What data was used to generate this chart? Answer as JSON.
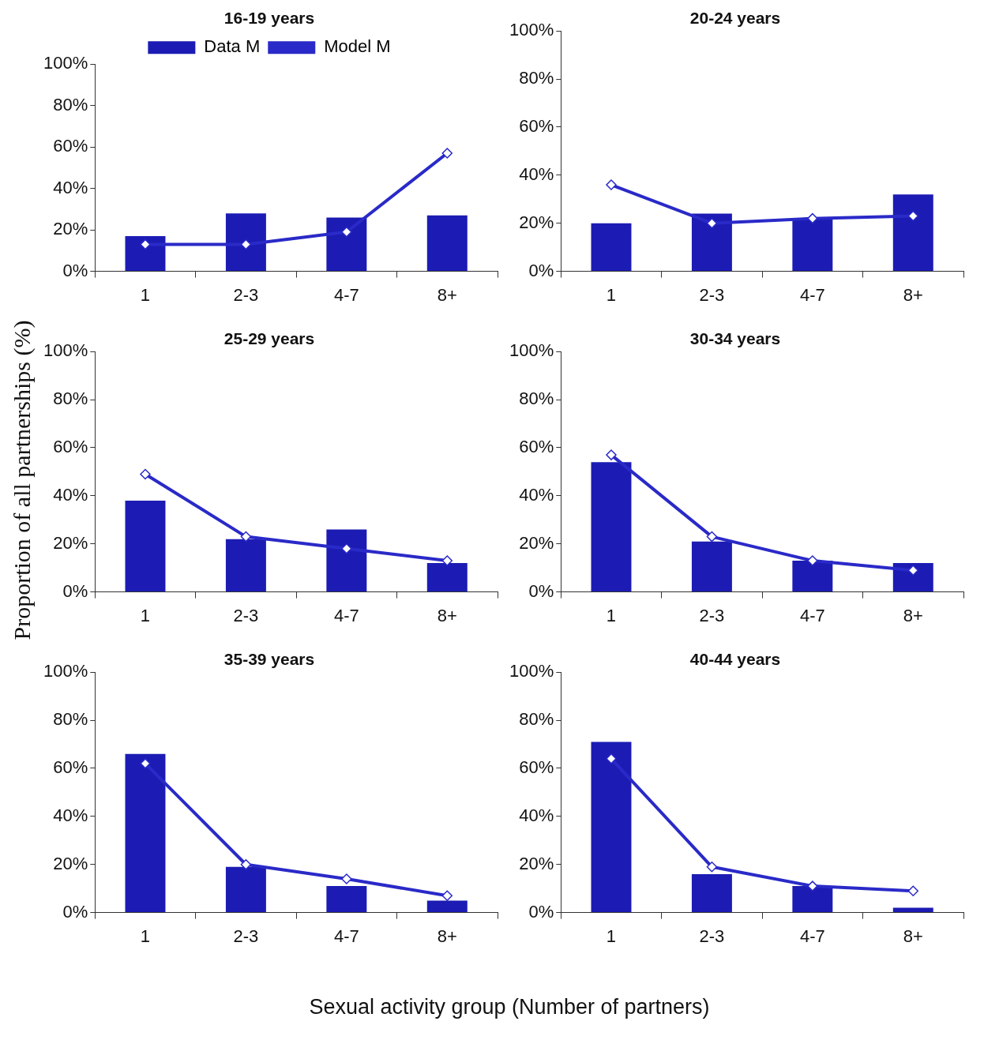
{
  "chart_data": [
    {
      "type": "bar",
      "title": "16-19 years",
      "ylabel": "Proportion of all partnerships (%)",
      "xlabel": "Sexual activity group (Number of partners)",
      "legend": "top",
      "grid": false,
      "categories": [
        "1",
        "2-3",
        "4-7",
        "8+"
      ],
      "ylim": [
        0,
        100
      ],
      "yticks": [
        {
          "value": 0,
          "label": "0%"
        },
        {
          "value": 20,
          "label": "20%"
        },
        {
          "value": 40,
          "label": "40%"
        },
        {
          "value": 60,
          "label": "60%"
        },
        {
          "value": 80,
          "label": "80%"
        },
        {
          "value": 100,
          "label": "100%"
        }
      ],
      "series": [
        {
          "name": "Data M",
          "color": "#1c1cb4",
          "values": [
            17,
            28,
            26,
            27
          ]
        },
        {
          "name": "Model M",
          "type": "line",
          "color": "#2a2ac8",
          "marker": "diamond",
          "values": [
            13,
            13,
            19,
            57
          ]
        }
      ]
    },
    {
      "type": "bar",
      "title": "20-24 years",
      "grid": false,
      "categories": [
        "1",
        "2-3",
        "4-7",
        "8+"
      ],
      "ylim": [
        0,
        100
      ],
      "yticks": [
        {
          "value": 0,
          "label": "0%"
        },
        {
          "value": 20,
          "label": "20%"
        },
        {
          "value": 40,
          "label": "40%"
        },
        {
          "value": 60,
          "label": "60%"
        },
        {
          "value": 80,
          "label": "80%"
        },
        {
          "value": 100,
          "label": "100%"
        }
      ],
      "series": [
        {
          "color": "#1c1cb4",
          "values": [
            20,
            24,
            22,
            32
          ]
        },
        {
          "type": "line",
          "color": "#2a2ac8",
          "marker": "diamond",
          "values": [
            36,
            20,
            22,
            23
          ]
        }
      ]
    },
    {
      "type": "bar",
      "title": "25-29 years",
      "grid": false,
      "categories": [
        "1",
        "2-3",
        "4-7",
        "8+"
      ],
      "ylim": [
        0,
        100
      ],
      "yticks": [
        {
          "value": 0,
          "label": "0%"
        },
        {
          "value": 20,
          "label": "20%"
        },
        {
          "value": 40,
          "label": "40%"
        },
        {
          "value": 60,
          "label": "60%"
        },
        {
          "value": 80,
          "label": "80%"
        },
        {
          "value": 100,
          "label": "100%"
        }
      ],
      "series": [
        {
          "color": "#1c1cb4",
          "values": [
            38,
            22,
            26,
            12
          ]
        },
        {
          "type": "line",
          "color": "#2a2ac8",
          "marker": "diamond",
          "values": [
            49,
            23,
            18,
            13
          ]
        }
      ]
    },
    {
      "type": "bar",
      "title": "30-34 years",
      "grid": false,
      "categories": [
        "1",
        "2-3",
        "4-7",
        "8+"
      ],
      "ylim": [
        0,
        100
      ],
      "yticks": [
        {
          "value": 0,
          "label": "0%"
        },
        {
          "value": 20,
          "label": "20%"
        },
        {
          "value": 40,
          "label": "40%"
        },
        {
          "value": 60,
          "label": "60%"
        },
        {
          "value": 80,
          "label": "80%"
        },
        {
          "value": 100,
          "label": "100%"
        }
      ],
      "series": [
        {
          "color": "#1c1cb4",
          "values": [
            54,
            21,
            13,
            12
          ]
        },
        {
          "type": "line",
          "color": "#2a2ac8",
          "marker": "diamond",
          "values": [
            57,
            23,
            13,
            9
          ]
        }
      ]
    },
    {
      "type": "bar",
      "title": "35-39 years",
      "grid": false,
      "categories": [
        "1",
        "2-3",
        "4-7",
        "8+"
      ],
      "ylim": [
        0,
        100
      ],
      "yticks": [
        {
          "value": 0,
          "label": "0%"
        },
        {
          "value": 20,
          "label": "20%"
        },
        {
          "value": 40,
          "label": "40%"
        },
        {
          "value": 60,
          "label": "60%"
        },
        {
          "value": 80,
          "label": "80%"
        },
        {
          "value": 100,
          "label": "100%"
        }
      ],
      "series": [
        {
          "color": "#1c1cb4",
          "values": [
            66,
            19,
            11,
            5
          ]
        },
        {
          "type": "line",
          "color": "#2a2ac8",
          "marker": "diamond",
          "values": [
            62,
            20,
            14,
            7
          ]
        }
      ]
    },
    {
      "type": "bar",
      "title": "40-44 years",
      "grid": false,
      "categories": [
        "1",
        "2-3",
        "4-7",
        "8+"
      ],
      "ylim": [
        0,
        100
      ],
      "yticks": [
        {
          "value": 0,
          "label": "0%"
        },
        {
          "value": 20,
          "label": "20%"
        },
        {
          "value": 40,
          "label": "40%"
        },
        {
          "value": 60,
          "label": "60%"
        },
        {
          "value": 80,
          "label": "80%"
        },
        {
          "value": 100,
          "label": "100%"
        }
      ],
      "series": [
        {
          "color": "#1c1cb4",
          "values": [
            71,
            16,
            11,
            2
          ]
        },
        {
          "type": "line",
          "color": "#2a2ac8",
          "marker": "diamond",
          "values": [
            64,
            19,
            11,
            9
          ]
        }
      ]
    }
  ]
}
